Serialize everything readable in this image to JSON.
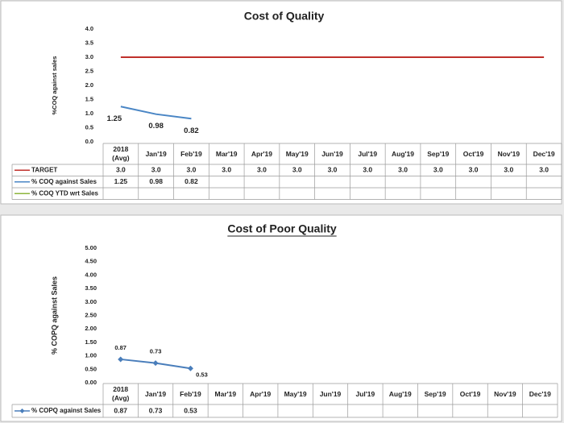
{
  "chart_data": [
    {
      "type": "line",
      "title": "Cost of Quality",
      "y_label": "%COQ against sales",
      "categories": [
        "2018 (Avg)",
        "Jan'19",
        "Feb'19",
        "Mar'19",
        "Apr'19",
        "May'19",
        "Jun'19",
        "Jul'19",
        "Aug'19",
        "Sep'19",
        "Oct'19",
        "Nov'19",
        "Dec'19"
      ],
      "ylim": [
        0,
        4
      ],
      "yticks": [
        {
          "value": 0,
          "label": "0.0"
        },
        0.5,
        {
          "value": 1,
          "label": "1.0"
        },
        1.5,
        {
          "value": 2,
          "label": "2.0"
        },
        2.5,
        {
          "value": 3,
          "label": "3.0"
        },
        3.5,
        {
          "value": 4,
          "label": "4.0"
        }
      ],
      "series": [
        {
          "name": "TARGET",
          "color": "#c0302b",
          "values": [
            3,
            3,
            3,
            3,
            3,
            3,
            3,
            3,
            3,
            3,
            3,
            3,
            3
          ],
          "value_labels": [
            "3.0",
            "3.0",
            "3.0",
            "3.0",
            "3.0",
            "3.0",
            "3.0",
            "3.0",
            "3.0",
            "3.0",
            "3.0",
            "3.0",
            "3.0"
          ]
        },
        {
          "name": "% COQ against Sales",
          "color": "#4a86c5",
          "show_labels": true,
          "values": [
            1.25,
            0.98,
            0.82,
            null,
            null,
            null,
            null,
            null,
            null,
            null,
            null,
            null,
            null
          ]
        },
        {
          "name": "% COQ YTD wrt Sales",
          "color": "#8db53c",
          "values": [
            null,
            null,
            null,
            null,
            null,
            null,
            null,
            null,
            null,
            null,
            null,
            null,
            null
          ]
        }
      ]
    },
    {
      "type": "line",
      "title": "Cost of Poor Quality",
      "title_underline": true,
      "y_label": "% COPQ against Sales",
      "categories": [
        "2018 (Avg)",
        "Jan'19",
        "Feb'19",
        "Mar'19",
        "Apr'19",
        "May'19",
        "Jun'19",
        "Jul'19",
        "Aug'19",
        "Sep'19",
        "Oct'19",
        "Nov'19",
        "Dec'19"
      ],
      "ylim": [
        0,
        5
      ],
      "yticks": [
        {
          "value": 0,
          "label": "0.00"
        },
        {
          "value": 0.5,
          "label": "0.50"
        },
        {
          "value": 1,
          "label": "1.00"
        },
        {
          "value": 1.5,
          "label": "1.50"
        },
        {
          "value": 2,
          "label": "2.00"
        },
        {
          "value": 2.5,
          "label": "2.50"
        },
        {
          "value": 3,
          "label": "3.00"
        },
        {
          "value": 3.5,
          "label": "3.50"
        },
        {
          "value": 4,
          "label": "4.00"
        },
        {
          "value": 4.5,
          "label": "4.50"
        },
        {
          "value": 5,
          "label": "5.00"
        }
      ],
      "series": [
        {
          "name": "% COPQ against Sales",
          "color": "#4a7ebb",
          "marker": "diamond",
          "show_labels": true,
          "values": [
            0.87,
            0.73,
            0.53,
            null,
            null,
            null,
            null,
            null,
            null,
            null,
            null,
            null,
            null
          ]
        }
      ]
    }
  ]
}
